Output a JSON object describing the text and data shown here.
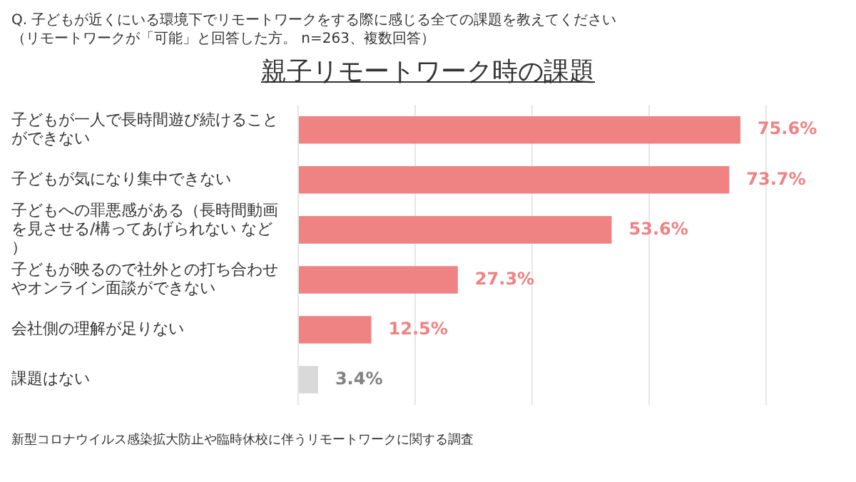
{
  "chart_data": {
    "type": "bar",
    "orientation": "horizontal",
    "title": "親子リモートワーク時の課題",
    "subtitle": "Q.  子どもが近くにいる環境下でリモートワークをする際に感じる全ての課題を教えてください（リモートワークが「可能」と回答した方。 n=263、複数回答）",
    "categories": [
      "子どもが一人で長時間遊び続けることができない",
      "子どもが気になり集中できない",
      "子どもへの罪悪感がある（長時間動画を見させる/構ってあげられない など）",
      "子どもが映るので社外との打ち合わせやオンライン面談ができない",
      "会社側の理解が足りない",
      "課題はない"
    ],
    "values": [
      75.6,
      73.7,
      53.6,
      27.3,
      12.5,
      3.4
    ],
    "colors": [
      "#ef8383",
      "#ef8383",
      "#ef8383",
      "#ef8383",
      "#ef8383",
      "#d9d9d9"
    ],
    "value_labels": [
      "75.6%",
      "73.7%",
      "53.6%",
      "27.3%",
      "12.5%",
      "3.4%"
    ],
    "xlim": [
      0,
      80
    ],
    "xticks": [
      {
        "value": 0,
        "label": null
      },
      {
        "value": 20,
        "label": null
      },
      {
        "value": 40,
        "label": null
      },
      {
        "value": 60,
        "label": null
      },
      {
        "value": 80,
        "label": null
      }
    ],
    "grid": "x",
    "legend": false,
    "tick_labels": "y",
    "annotations": [
      "新型コロナウイルス感染拡大防止や臨時休校に伴うリモートワークに関する調査"
    ]
  }
}
